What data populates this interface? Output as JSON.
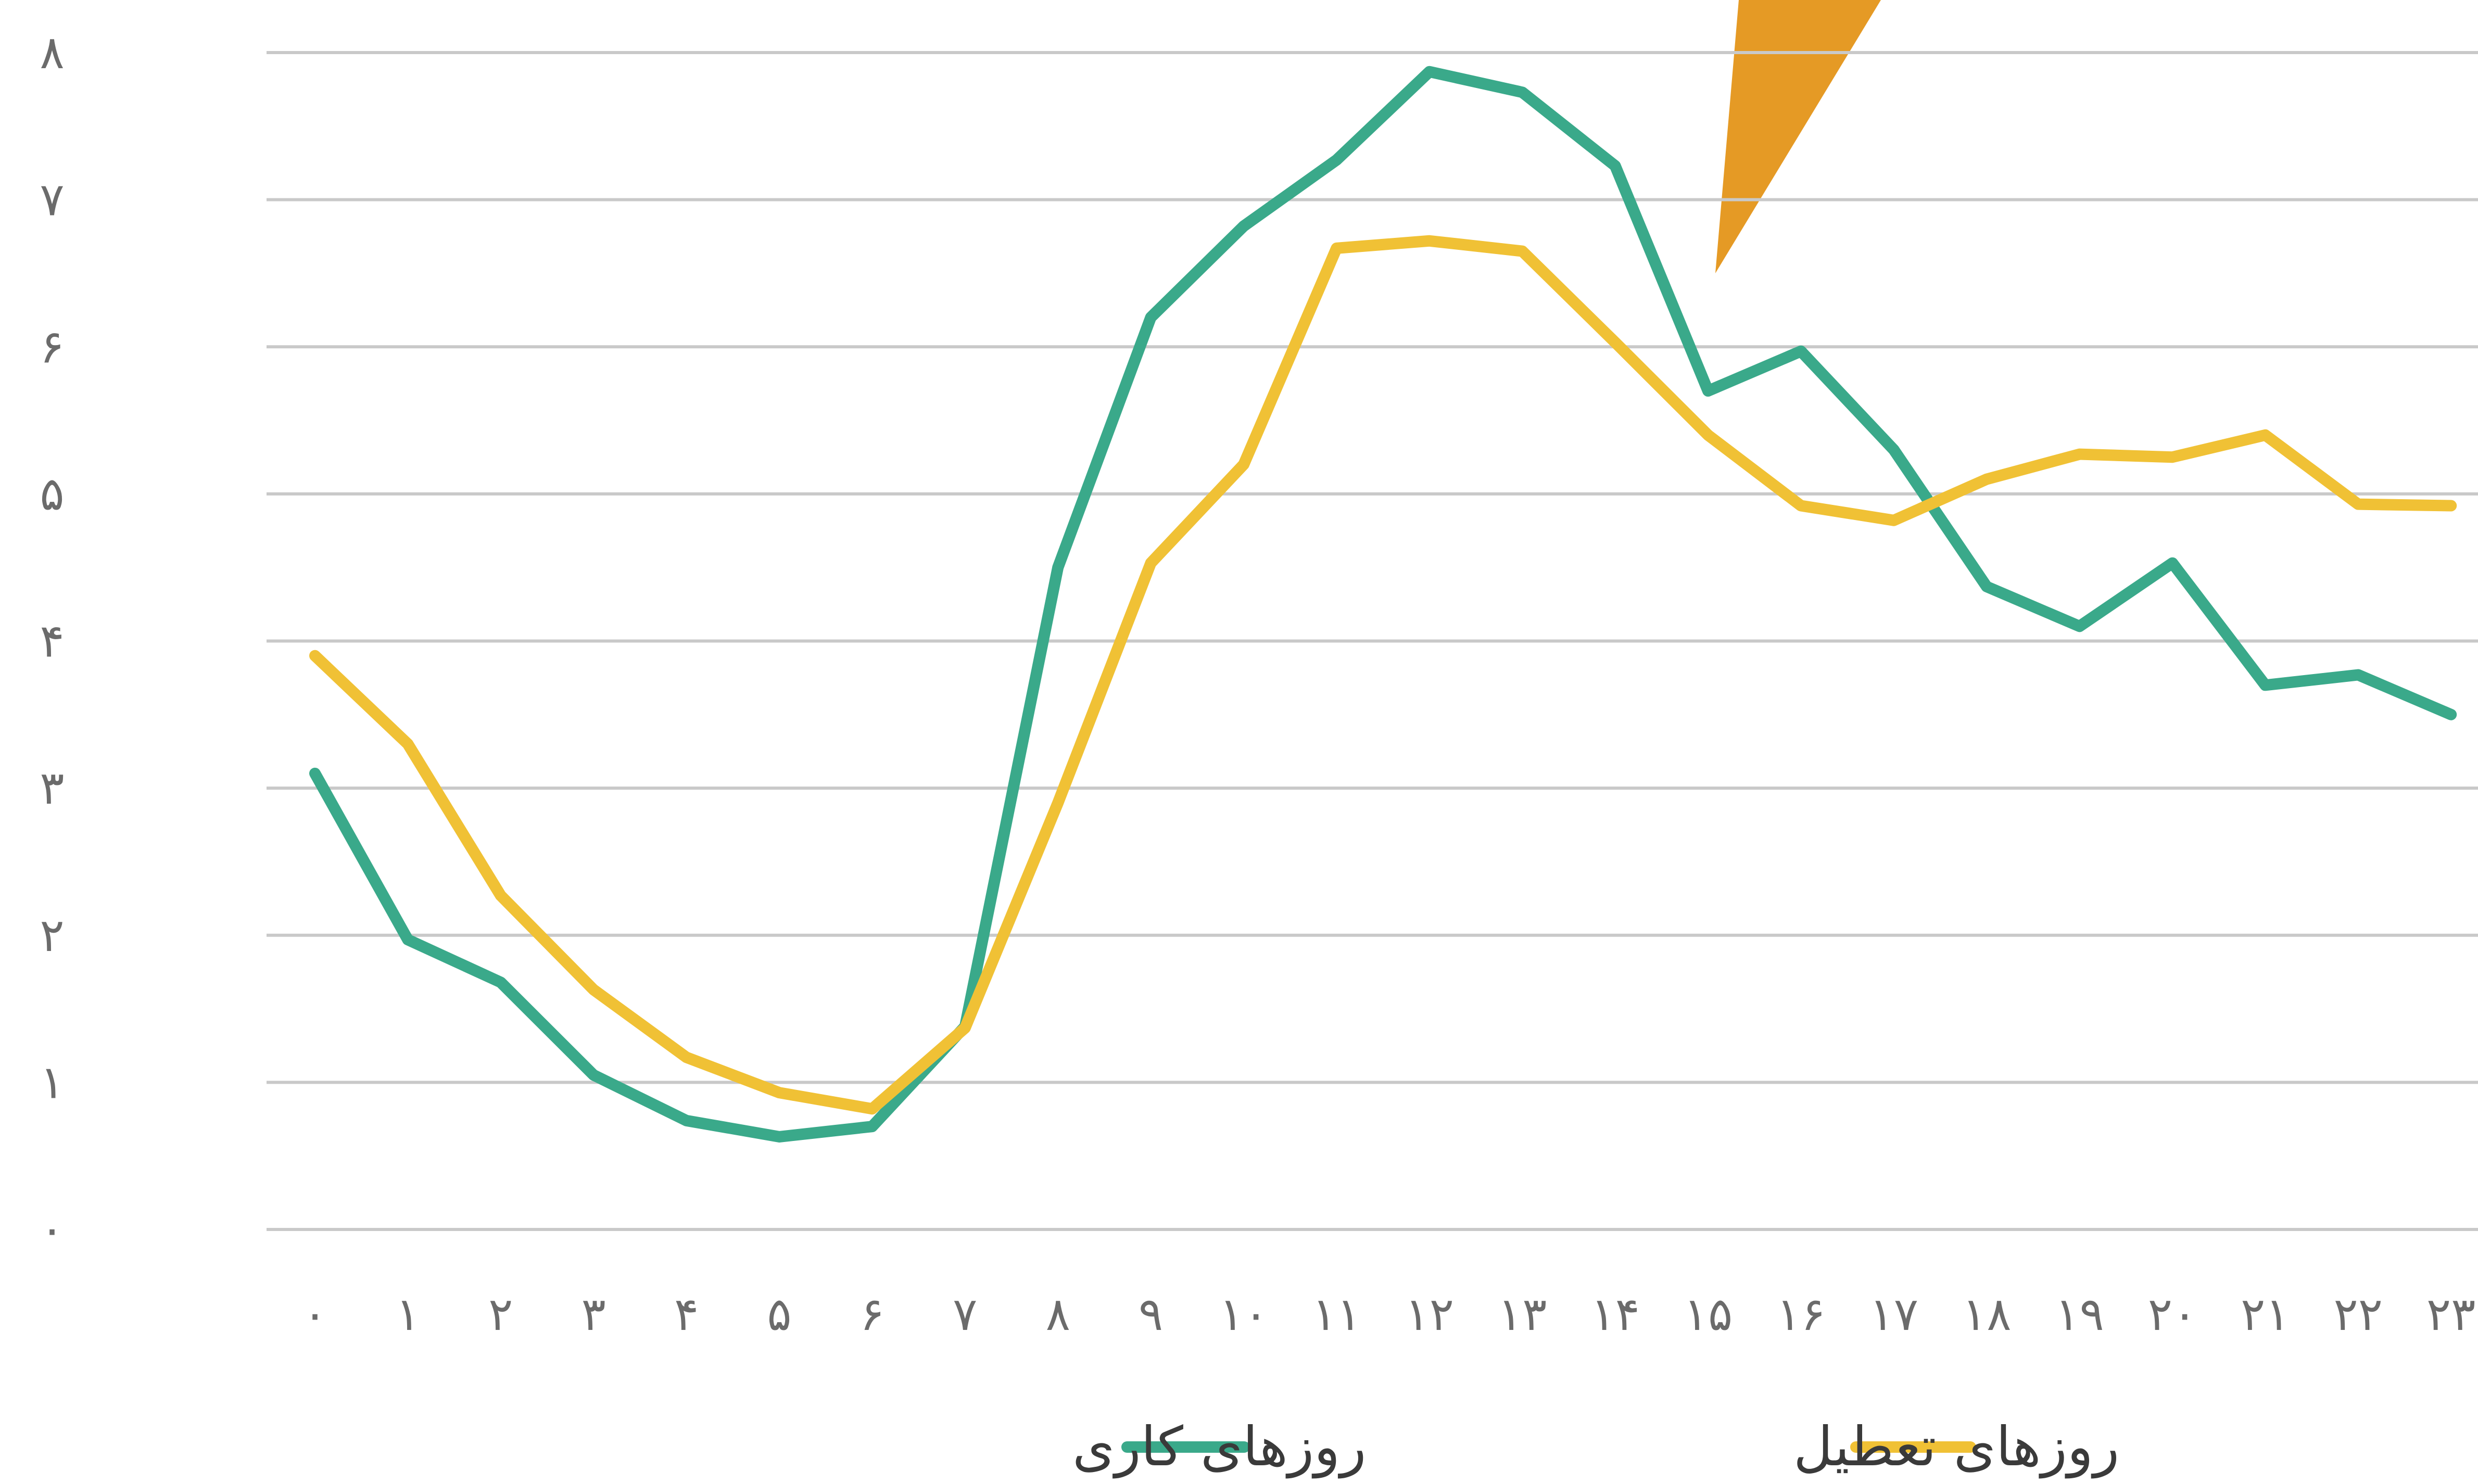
{
  "chart_data": {
    "type": "line",
    "categories": [
      "۰",
      "۱",
      "۲",
      "۳",
      "۴",
      "۵",
      "۶",
      "۷",
      "۸",
      "۹",
      "۱۰",
      "۱۱",
      "۱۲",
      "۱۳",
      "۱۴",
      "۱۵",
      "۱۶",
      "۱۷",
      "۱۸",
      "۱۹",
      "۲۰",
      "۲۱",
      "۲۲",
      "۲۳"
    ],
    "x": [
      0,
      1,
      2,
      3,
      4,
      5,
      6,
      7,
      8,
      9,
      10,
      11,
      12,
      13,
      14,
      15,
      16,
      17,
      18,
      19,
      20,
      21,
      22,
      23
    ],
    "y_ticks": [
      {
        "value": 0,
        "label": "۰"
      },
      {
        "value": 1,
        "label": "۱"
      },
      {
        "value": 2,
        "label": "۲"
      },
      {
        "value": 3,
        "label": "۳"
      },
      {
        "value": 4,
        "label": "۴"
      },
      {
        "value": 5,
        "label": "۵"
      },
      {
        "value": 6,
        "label": "۶"
      },
      {
        "value": 7,
        "label": "۷"
      },
      {
        "value": 8,
        "label": "۸"
      }
    ],
    "ylim": [
      0,
      8
    ],
    "grid": true,
    "legend_position": "bottom",
    "series": [
      {
        "name": "روزهای کاری",
        "color": "#3aa98a",
        "values": [
          3.1,
          1.97,
          1.68,
          1.05,
          0.74,
          0.63,
          0.7,
          1.38,
          4.5,
          6.2,
          6.82,
          7.27,
          7.87,
          7.73,
          7.23,
          5.7,
          5.97,
          5.3,
          4.37,
          4.1,
          4.53,
          3.7,
          3.77,
          3.5
        ]
      },
      {
        "name": "روزهای تعطیل",
        "color": "#f0c135",
        "values": [
          3.9,
          3.3,
          2.27,
          1.63,
          1.17,
          0.93,
          0.82,
          1.37,
          2.9,
          4.53,
          5.2,
          6.67,
          6.72,
          6.65,
          6.03,
          5.4,
          4.92,
          4.82,
          5.1,
          5.27,
          5.25,
          5.4,
          4.93,
          4.92
        ]
      }
    ],
    "decoration": {
      "shape": "triangle",
      "color": "#e59a25"
    }
  }
}
